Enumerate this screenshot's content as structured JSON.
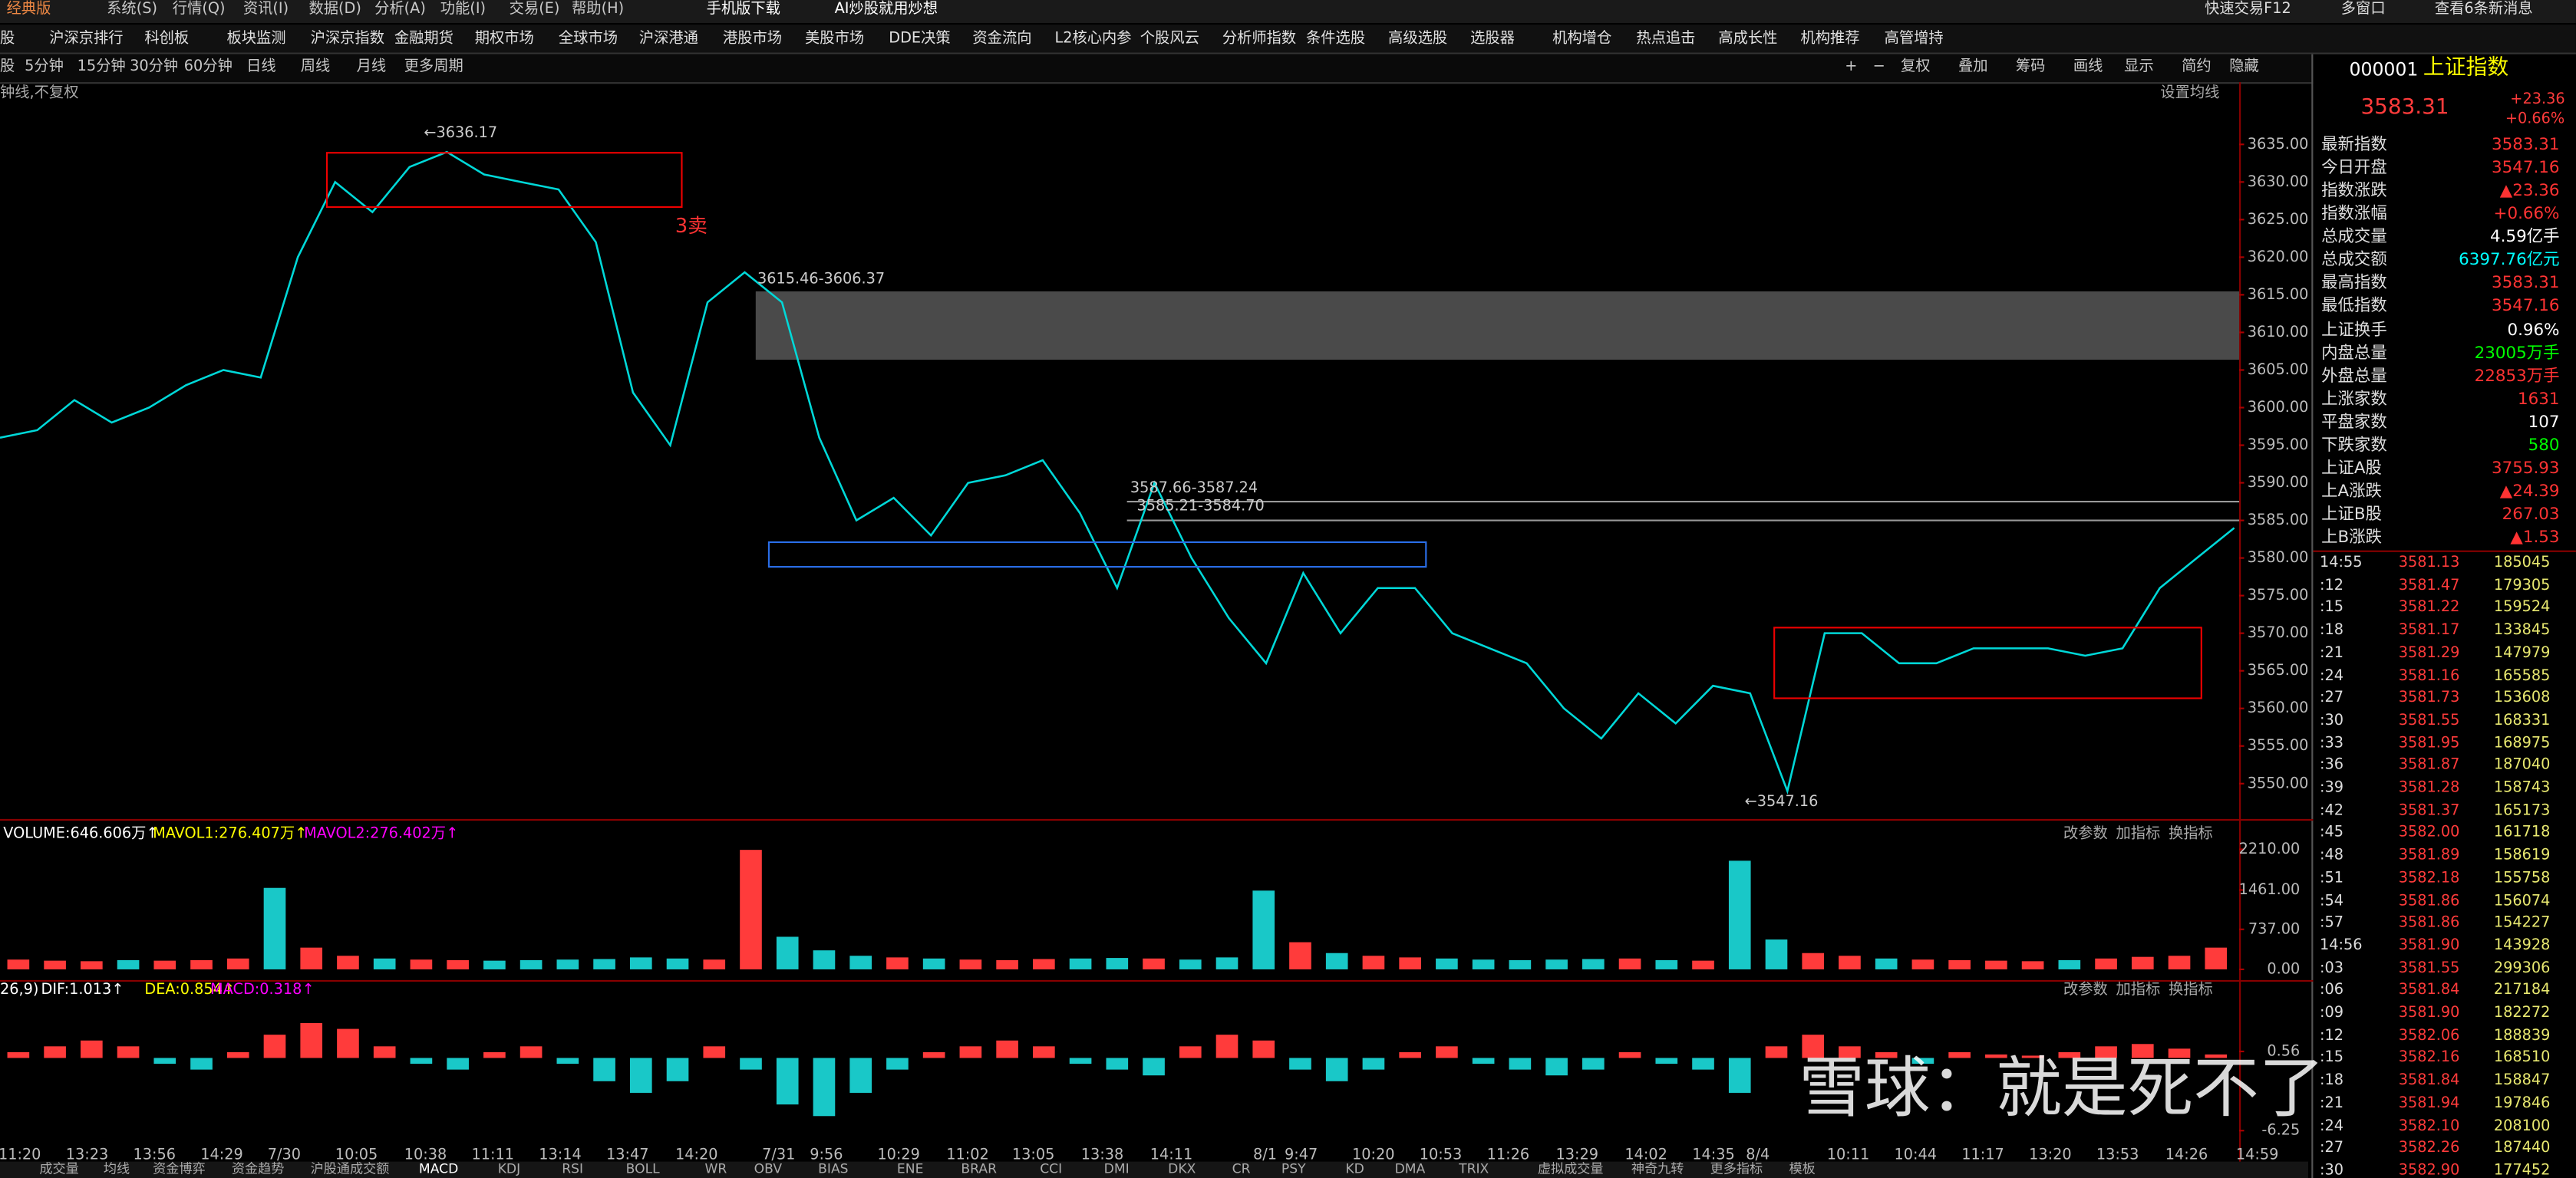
{
  "menu": [
    "经典版",
    "系统(S)",
    "行情(Q)",
    "资讯(I)",
    "数据(D)",
    "分析(A)",
    "功能(I)",
    "交易(E)",
    "帮助(H)",
    "手机版下载",
    "AI炒股就用炒想"
  ],
  "top_right": [
    "快速交易F12",
    "多窗口",
    "查看6条新消息"
  ],
  "nav": [
    "股",
    "沪深京排行",
    "科创板",
    "板块监测",
    "沪深京指数",
    "金融期货",
    "期权市场",
    "全球市场",
    "沪深港通",
    "港股市场",
    "美股市场",
    "DDE决策",
    "资金流向",
    "L2核心内参",
    "个股风云",
    "分析师指数",
    "条件选股",
    "高级选股",
    "选股器",
    "机构增仓",
    "热点追击",
    "高成长性",
    "机构推荐",
    "高管增持"
  ],
  "periods": [
    "股",
    "5分钟",
    "15分钟",
    "30分钟",
    "60分钟",
    "日线",
    "周线",
    "月线",
    "更多周期"
  ],
  "tools": [
    "+",
    "−",
    "复权",
    "叠加",
    "筹码",
    "画线",
    "显示",
    "简约",
    "隐藏"
  ],
  "chart_header": {
    "left": "钟线,不复权",
    "right": "设置均线"
  },
  "panel_tools": [
    "改参数",
    "加指标",
    "换指标"
  ],
  "chart_data": [
    {
      "type": "line",
      "color": "#00d8d8",
      "values": [
        3596,
        3597,
        3601,
        3598,
        3600,
        3603,
        3605,
        3604,
        3620,
        3630,
        3626,
        3632,
        3634,
        3631,
        3630,
        3629,
        3622,
        3602,
        3595,
        3614,
        3618,
        3614,
        3596,
        3585,
        3588,
        3583,
        3590,
        3591,
        3593,
        3586,
        3576,
        3590,
        3580,
        3572,
        3566,
        3578,
        3570,
        3576,
        3576,
        3570,
        3568,
        3566,
        3560,
        3556,
        3562,
        3558,
        3563,
        3562,
        3549,
        3570,
        3570,
        3566,
        3566,
        3568,
        3568,
        3568,
        3567,
        3568,
        3576,
        3580,
        3584
      ],
      "ylim": [
        3545.4,
        3640
      ],
      "yticks": [
        {
          "value": 3635,
          "label": "3635.00"
        },
        {
          "value": 3630,
          "label": "3630.00"
        },
        {
          "value": 3625,
          "label": "3625.00"
        },
        {
          "value": 3620,
          "label": "3620.00"
        },
        {
          "value": 3615,
          "label": "3615.00"
        },
        {
          "value": 3610,
          "label": "3610.00"
        },
        {
          "value": 3605,
          "label": "3605.00"
        },
        {
          "value": 3600,
          "label": "3600.00"
        },
        {
          "value": 3595,
          "label": "3595.00"
        },
        {
          "value": 3590,
          "label": "3590.00"
        },
        {
          "value": 3585,
          "label": "3585.00"
        },
        {
          "value": 3580,
          "label": "3580.00"
        },
        {
          "value": 3575,
          "label": "3575.00"
        },
        {
          "value": 3570,
          "label": "3570.00"
        },
        {
          "value": 3565,
          "label": "3565.00"
        },
        {
          "value": 3560,
          "label": "3560.00"
        },
        {
          "value": 3555,
          "label": "3555.00"
        },
        {
          "value": 3550,
          "label": "3550.00"
        }
      ],
      "annotations": [
        "←3636.17",
        "3卖",
        "3615.46-3606.37",
        "3587.66-3587.24",
        "3585.21-3584.70",
        "←3547.16"
      ],
      "time_labels": [
        "11:20",
        "13:23",
        "13:56",
        "14:29",
        "7/30",
        "10:05",
        "10:38",
        "11:11",
        "13:14",
        "13:47",
        "14:20",
        "7/31",
        "9:56",
        "10:29",
        "11:02",
        "13:05",
        "13:38",
        "14:11",
        "8/1",
        "9:47",
        "10:20",
        "10:53",
        "11:26",
        "13:29",
        "14:02",
        "14:35",
        "8/4",
        "10:11",
        "10:44",
        "11:17",
        "13:20",
        "13:53",
        "14:26",
        "14:59"
      ]
    },
    {
      "type": "bar",
      "legend": [
        "VOLUME:646.606万↑",
        "MAVOL1:276.407万↑",
        "MAVOL2:276.402万↑"
      ],
      "values": [
        180,
        160,
        150,
        170,
        160,
        170,
        200,
        1500,
        400,
        250,
        200,
        180,
        170,
        160,
        170,
        180,
        190,
        220,
        200,
        180,
        2200,
        600,
        350,
        250,
        220,
        200,
        180,
        170,
        190,
        200,
        210,
        200,
        180,
        220,
        1450,
        500,
        300,
        250,
        220,
        200,
        180,
        170,
        180,
        190,
        200,
        170,
        160,
        2000,
        550,
        300,
        250,
        200,
        180,
        170,
        160,
        150,
        170,
        200,
        230,
        250,
        400
      ],
      "ylim": [
        0,
        2420
      ],
      "yticks": [
        {
          "value": 2210,
          "label": "2210.00"
        },
        {
          "value": 1461,
          "label": "1461.00"
        },
        {
          "value": 737,
          "label": "737.00"
        },
        {
          "value": 0,
          "label": "0.00"
        }
      ]
    },
    {
      "type": "bar",
      "legend": [
        "26,9)",
        "DIF:1.013↑",
        "DEA:0.854↑",
        "MACD:0.318↑"
      ],
      "values": [
        0.5,
        1,
        1.5,
        1,
        -0.5,
        -1,
        0.5,
        2,
        3,
        2.5,
        1,
        -0.5,
        -1,
        0.5,
        1,
        -0.5,
        -2,
        -3,
        -2,
        1,
        -1,
        -4,
        -5,
        -3,
        -1,
        0.5,
        1,
        1.5,
        1,
        -0.5,
        -1,
        -1.5,
        1,
        2,
        1.5,
        -1,
        -2,
        -1,
        0.5,
        1,
        -0.5,
        -1,
        -1.5,
        -1,
        0.5,
        -0.5,
        -1,
        -3,
        1,
        2,
        1,
        0.5,
        -0.5,
        0.5,
        0.3,
        0.2,
        0.5,
        1,
        1.2,
        0.8,
        0.3
      ],
      "ylim": [
        -7.5,
        5.5
      ],
      "yticks": [
        0.56,
        -6.25
      ]
    }
  ],
  "tabs": [
    "成交量",
    "均线",
    "资金博弈",
    "资金趋势",
    "沪股通成交额",
    "MACD",
    "KDJ",
    "RSI",
    "BOLL",
    "WR",
    "OBV",
    "BIAS",
    "ENE",
    "BRAR",
    "CCI",
    "DMI",
    "DKX",
    "CR",
    "PSY",
    "KD",
    "DMA",
    "TRIX",
    "虚拟成交量",
    "神奇九转",
    "更多指标",
    "模板"
  ],
  "quote": {
    "code": "000001",
    "name": "上证指数",
    "price": "3583.31",
    "change": "+23.36",
    "pct": "+0.66%"
  },
  "quote_rows": [
    [
      "最新指数",
      "3583.31"
    ],
    [
      "今日开盘",
      "3547.16"
    ],
    [
      "指数涨跌",
      "▲23.36"
    ],
    [
      "指数涨幅",
      "+0.66%"
    ],
    [
      "总成交量",
      "4.59亿手"
    ],
    [
      "总成交额",
      "6397.76亿元"
    ],
    [
      "最高指数",
      "3583.31"
    ],
    [
      "最低指数",
      "3547.16"
    ],
    [
      "上证换手",
      "0.96%"
    ],
    [
      "内盘总量",
      "23005万手"
    ],
    [
      "外盘总量",
      "22853万手"
    ],
    [
      "上涨家数",
      "1631"
    ],
    [
      "平盘家数",
      "107"
    ],
    [
      "下跌家数",
      "580"
    ],
    [
      "上证A股",
      "3755.93"
    ],
    [
      "上A涨跌",
      "▲24.39"
    ],
    [
      "上证B股",
      "267.03"
    ],
    [
      "上B涨跌",
      "▲1.53"
    ]
  ],
  "ticks": [
    [
      "14:55",
      "3581.13",
      "185045"
    ],
    [
      ":12",
      "3581.47",
      "179305"
    ],
    [
      ":15",
      "3581.22",
      "159524"
    ],
    [
      ":18",
      "3581.17",
      "133845"
    ],
    [
      ":21",
      "3581.29",
      "147979"
    ],
    [
      ":24",
      "3581.16",
      "165585"
    ],
    [
      ":27",
      "3581.73",
      "153608"
    ],
    [
      ":30",
      "3581.55",
      "168331"
    ],
    [
      ":33",
      "3581.95",
      "168975"
    ],
    [
      ":36",
      "3581.87",
      "187040"
    ],
    [
      ":39",
      "3581.28",
      "158743"
    ],
    [
      ":42",
      "3581.37",
      "165173"
    ],
    [
      ":45",
      "3582.00",
      "161718"
    ],
    [
      ":48",
      "3581.89",
      "158619"
    ],
    [
      ":51",
      "3582.18",
      "155758"
    ],
    [
      ":54",
      "3581.86",
      "156074"
    ],
    [
      ":57",
      "3581.86",
      "154227"
    ],
    [
      "14:56",
      "3581.90",
      "143928"
    ],
    [
      ":03",
      "3581.55",
      "299306"
    ],
    [
      ":06",
      "3581.84",
      "217184"
    ],
    [
      ":09",
      "3581.90",
      "182272"
    ],
    [
      ":12",
      "3582.06",
      "188839"
    ],
    [
      ":15",
      "3582.16",
      "168510"
    ],
    [
      ":18",
      "3581.84",
      "158847"
    ],
    [
      ":21",
      "3581.94",
      "197846"
    ],
    [
      ":24",
      "3582.10",
      "208100"
    ],
    [
      ":27",
      "3582.26",
      "187440"
    ],
    [
      ":30",
      "3582.90",
      "177452"
    ]
  ],
  "watermark": "雪球：就是死不了"
}
